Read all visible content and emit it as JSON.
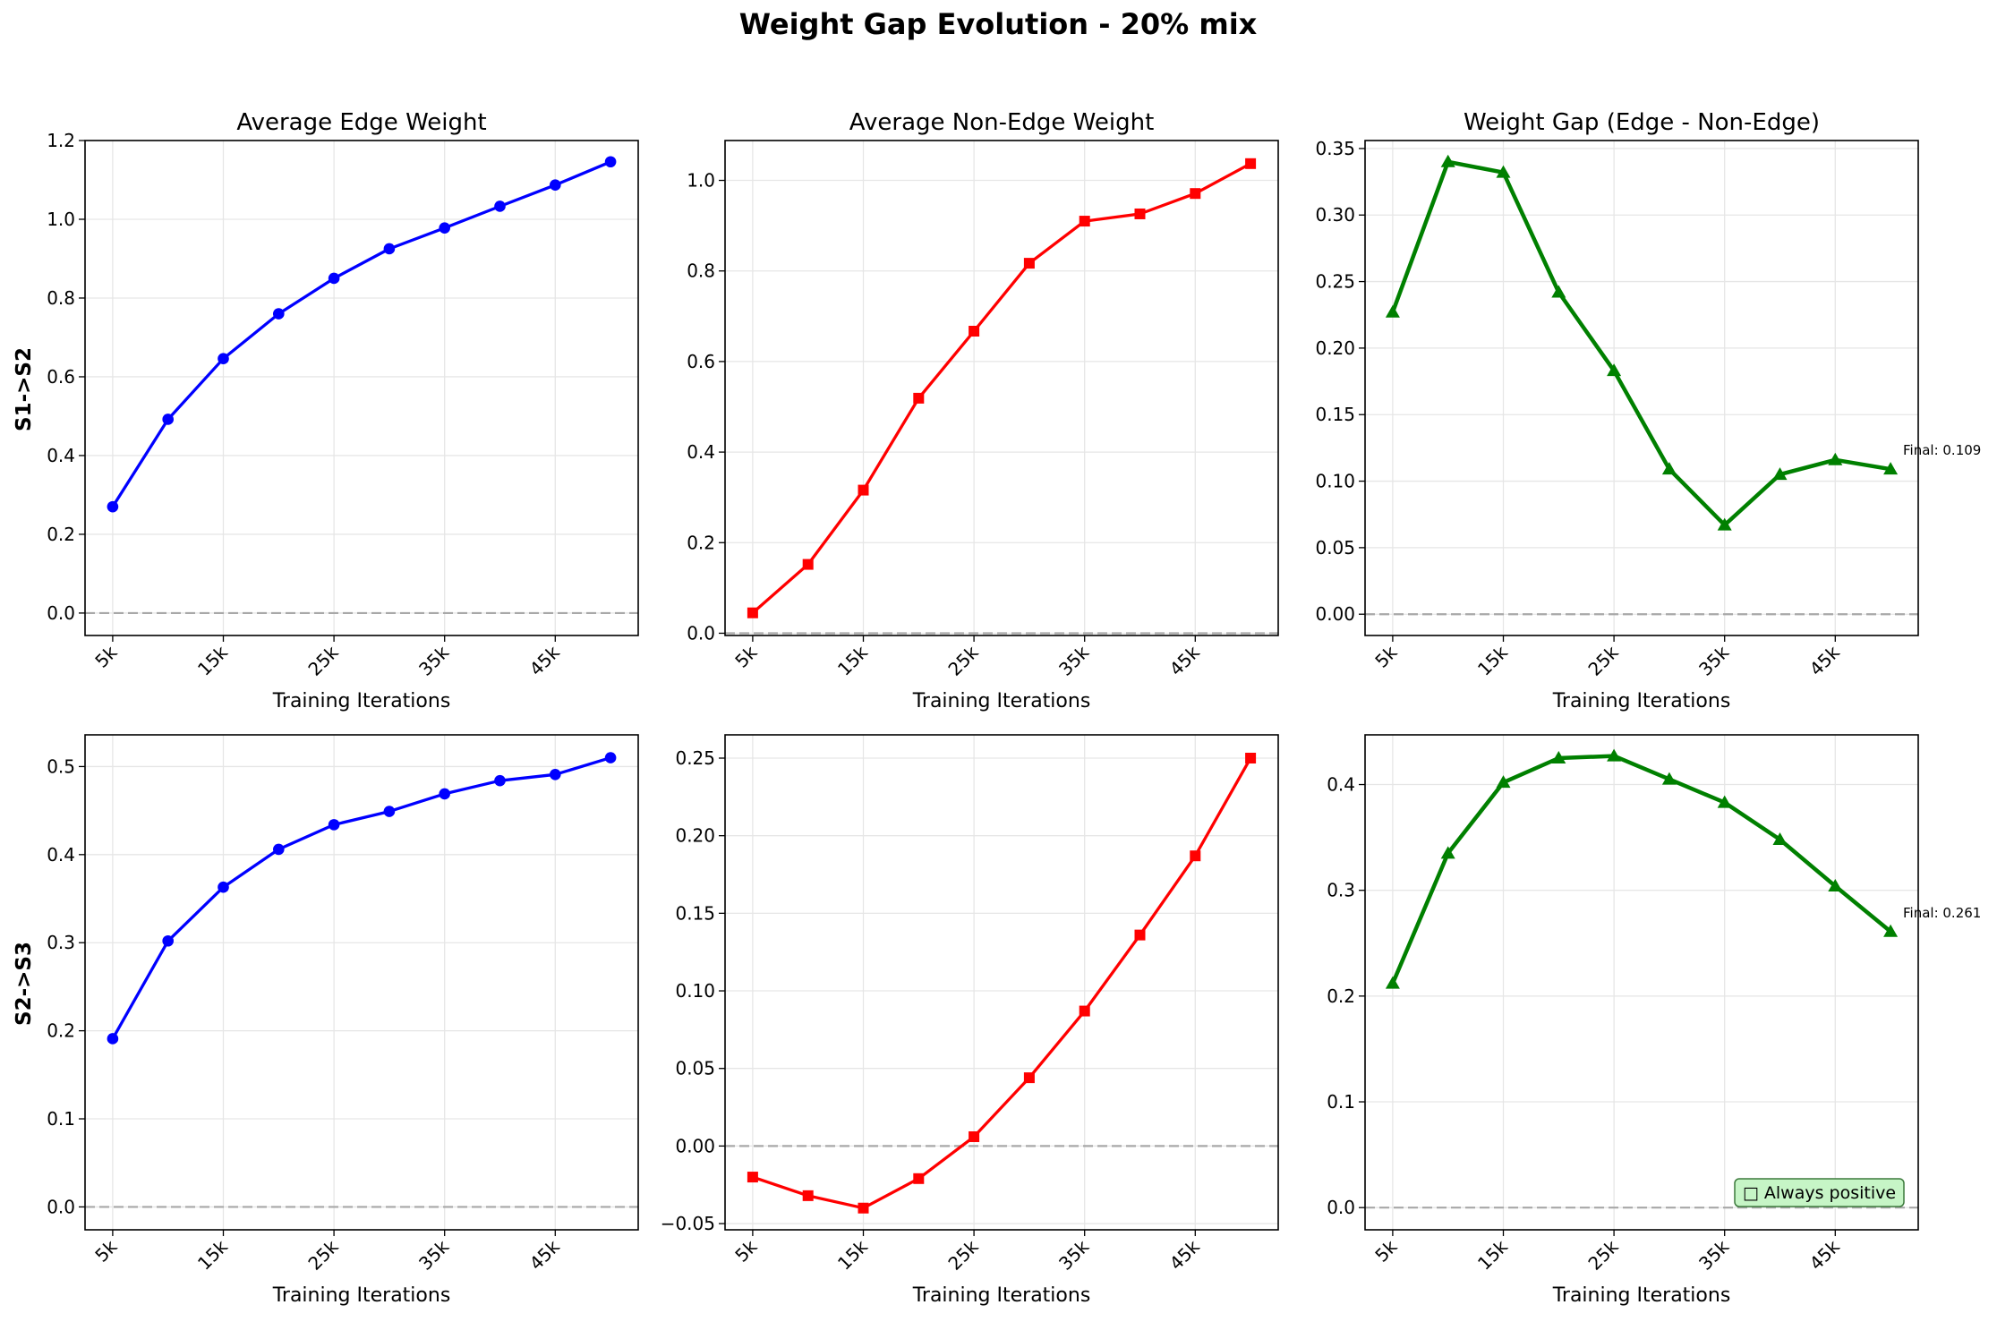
{
  "figure": {
    "title": "Weight Gap Evolution - 20% mix",
    "row_labels": [
      "S1->S2",
      "S2->S3"
    ]
  },
  "chart_data": [
    {
      "type": "line",
      "title": "Average Edge Weight",
      "row_label": "S1->S2",
      "xlabel": "Training Iterations",
      "ylabel": "S1->S2",
      "x": [
        5000,
        10000,
        15000,
        20000,
        25000,
        30000,
        35000,
        40000,
        45000,
        50000
      ],
      "xticks": [
        5000,
        15000,
        25000,
        35000,
        45000
      ],
      "xtick_labels": [
        "5k",
        "15k",
        "25k",
        "35k",
        "45k"
      ],
      "series": [
        {
          "values": [
            0.27,
            0.492,
            0.646,
            0.76,
            0.85,
            0.925,
            0.978,
            1.033,
            1.087,
            1.146
          ],
          "color": "#0000ff",
          "marker": "circle"
        }
      ],
      "ylim": [
        -0.057,
        1.2
      ],
      "yticks": [
        0.0,
        0.2,
        0.4,
        0.6,
        0.8,
        1.0,
        1.2
      ],
      "ytick_labels": [
        "0.0",
        "0.2",
        "0.4",
        "0.6",
        "0.8",
        "1.0",
        "1.2"
      ],
      "zero_line": true,
      "grid": true
    },
    {
      "type": "line",
      "title": "Average Non-Edge Weight",
      "xlabel": "Training Iterations",
      "x": [
        5000,
        10000,
        15000,
        20000,
        25000,
        30000,
        35000,
        40000,
        45000,
        50000
      ],
      "xticks": [
        5000,
        15000,
        25000,
        35000,
        45000
      ],
      "xtick_labels": [
        "5k",
        "15k",
        "25k",
        "35k",
        "45k"
      ],
      "series": [
        {
          "values": [
            0.045,
            0.152,
            0.316,
            0.519,
            0.667,
            0.817,
            0.91,
            0.926,
            0.971,
            1.037
          ],
          "color": "#ff0000",
          "marker": "square"
        }
      ],
      "ylim": [
        -0.005,
        1.088
      ],
      "yticks": [
        0.0,
        0.2,
        0.4,
        0.6,
        0.8,
        1.0
      ],
      "ytick_labels": [
        "0.0",
        "0.2",
        "0.4",
        "0.6",
        "0.8",
        "1.0"
      ],
      "zero_line": true,
      "grid": true
    },
    {
      "type": "line",
      "title": "Weight Gap (Edge - Non-Edge)",
      "xlabel": "Training Iterations",
      "x": [
        5000,
        10000,
        15000,
        20000,
        25000,
        30000,
        35000,
        40000,
        45000,
        50000
      ],
      "xticks": [
        5000,
        15000,
        25000,
        35000,
        45000
      ],
      "xtick_labels": [
        "5k",
        "15k",
        "25k",
        "35k",
        "45k"
      ],
      "series": [
        {
          "values": [
            0.227,
            0.34,
            0.332,
            0.242,
            0.183,
            0.109,
            0.067,
            0.105,
            0.116,
            0.109
          ],
          "color": "#008000",
          "marker": "triangle"
        }
      ],
      "ylim": [
        -0.016,
        0.356
      ],
      "yticks": [
        0.0,
        0.05,
        0.1,
        0.15,
        0.2,
        0.25,
        0.3,
        0.35
      ],
      "ytick_labels": [
        "0.00",
        "0.05",
        "0.10",
        "0.15",
        "0.20",
        "0.25",
        "0.30",
        "0.35"
      ],
      "zero_line": true,
      "grid": true,
      "annotation": "Final: 0.109"
    },
    {
      "type": "line",
      "row_label": "S2->S3",
      "xlabel": "Training Iterations",
      "ylabel": "S2->S3",
      "x": [
        5000,
        10000,
        15000,
        20000,
        25000,
        30000,
        35000,
        40000,
        45000,
        50000
      ],
      "xticks": [
        5000,
        15000,
        25000,
        35000,
        45000
      ],
      "xtick_labels": [
        "5k",
        "15k",
        "25k",
        "35k",
        "45k"
      ],
      "series": [
        {
          "values": [
            0.191,
            0.302,
            0.363,
            0.406,
            0.434,
            0.449,
            0.469,
            0.484,
            0.491,
            0.51
          ],
          "color": "#0000ff",
          "marker": "circle"
        }
      ],
      "ylim": [
        -0.026,
        0.536
      ],
      "yticks": [
        0.0,
        0.1,
        0.2,
        0.3,
        0.4,
        0.5
      ],
      "ytick_labels": [
        "0.0",
        "0.1",
        "0.2",
        "0.3",
        "0.4",
        "0.5"
      ],
      "zero_line": true,
      "grid": true
    },
    {
      "type": "line",
      "xlabel": "Training Iterations",
      "x": [
        5000,
        10000,
        15000,
        20000,
        25000,
        30000,
        35000,
        40000,
        45000,
        50000
      ],
      "xticks": [
        5000,
        15000,
        25000,
        35000,
        45000
      ],
      "xtick_labels": [
        "5k",
        "15k",
        "25k",
        "35k",
        "45k"
      ],
      "series": [
        {
          "values": [
            -0.02,
            -0.032,
            -0.04,
            -0.021,
            0.006,
            0.044,
            0.087,
            0.136,
            0.187,
            0.25
          ],
          "color": "#ff0000",
          "marker": "square"
        }
      ],
      "ylim": [
        -0.054,
        0.265
      ],
      "yticks": [
        -0.05,
        0.0,
        0.05,
        0.1,
        0.15,
        0.2,
        0.25
      ],
      "ytick_labels": [
        "−0.05",
        "0.00",
        "0.05",
        "0.10",
        "0.15",
        "0.20",
        "0.25"
      ],
      "zero_line": true,
      "grid": true
    },
    {
      "type": "line",
      "xlabel": "Training Iterations",
      "x": [
        5000,
        10000,
        15000,
        20000,
        25000,
        30000,
        35000,
        40000,
        45000,
        50000
      ],
      "xticks": [
        5000,
        15000,
        25000,
        35000,
        45000
      ],
      "xtick_labels": [
        "5k",
        "15k",
        "25k",
        "35k",
        "45k"
      ],
      "series": [
        {
          "values": [
            0.212,
            0.335,
            0.402,
            0.425,
            0.427,
            0.405,
            0.383,
            0.348,
            0.304,
            0.261
          ],
          "color": "#008000",
          "marker": "triangle"
        }
      ],
      "ylim": [
        -0.021,
        0.447
      ],
      "yticks": [
        0.0,
        0.1,
        0.2,
        0.3,
        0.4
      ],
      "ytick_labels": [
        "0.0",
        "0.1",
        "0.2",
        "0.3",
        "0.4"
      ],
      "zero_line": true,
      "grid": true,
      "annotation": "Final: 0.261",
      "badge": "□ Always positive",
      "badge_bg": "#c6f5c6",
      "badge_border": "#3c7a3c"
    }
  ]
}
